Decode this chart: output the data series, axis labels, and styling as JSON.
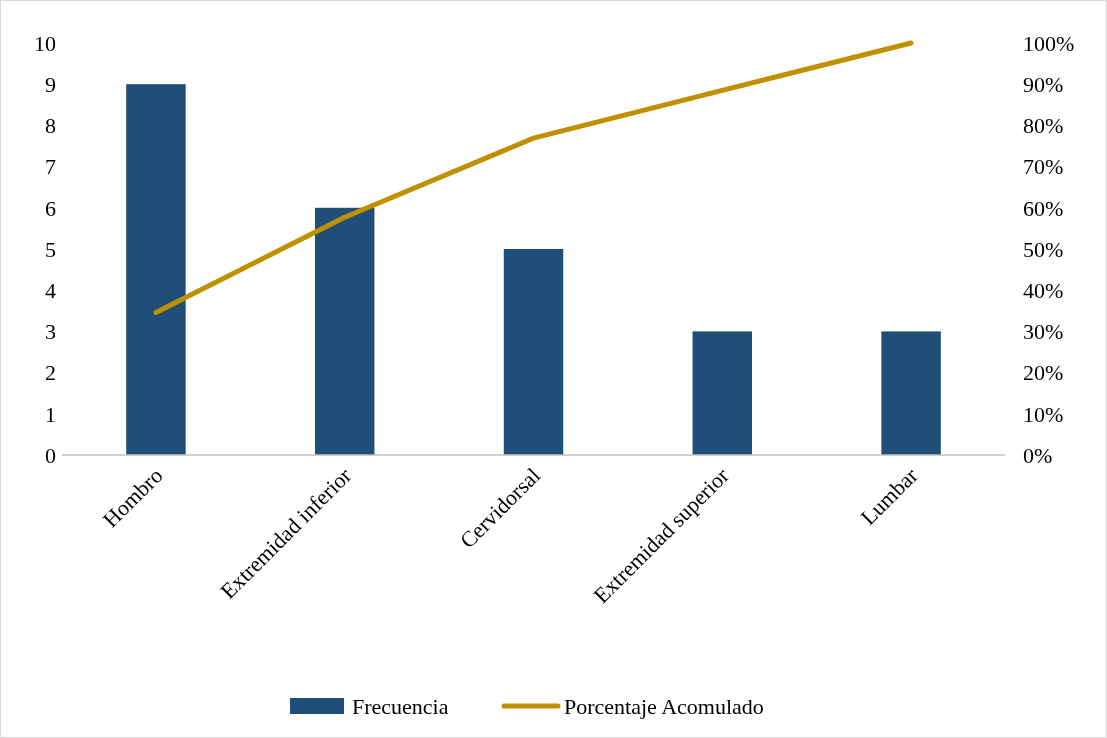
{
  "chart_data": {
    "type": "bar",
    "categories": [
      "Hombro",
      "Extremidad inferior",
      "Cervidorsal",
      "Extremidad superior",
      "Lumbar"
    ],
    "series": [
      {
        "name": "Frecuencia",
        "color": "#1f4e79",
        "values": [
          9,
          6,
          5,
          3,
          3
        ]
      },
      {
        "name": "Porcentaje Acomulado",
        "type": "line",
        "axis": "y2",
        "color": "#bf9000",
        "values": [
          34.6,
          57.7,
          76.9,
          88.5,
          100
        ]
      }
    ],
    "ylim": [
      0,
      10
    ],
    "yticks": [
      0,
      1,
      2,
      3,
      4,
      5,
      6,
      7,
      8,
      9,
      10
    ],
    "y2lim": [
      0,
      100
    ],
    "y2ticks": [
      {
        "value": 0,
        "label": "0%"
      },
      {
        "value": 10,
        "label": "10%"
      },
      {
        "value": 20,
        "label": "20%"
      },
      {
        "value": 30,
        "label": "30%"
      },
      {
        "value": 40,
        "label": "40%"
      },
      {
        "value": 50,
        "label": "50%"
      },
      {
        "value": 60,
        "label": "60%"
      },
      {
        "value": 70,
        "label": "70%"
      },
      {
        "value": 80,
        "label": "80%"
      },
      {
        "value": 90,
        "label": "90%"
      },
      {
        "value": 100,
        "label": "100%"
      }
    ],
    "grid": false,
    "legend": "bottom",
    "marker": "none"
  }
}
